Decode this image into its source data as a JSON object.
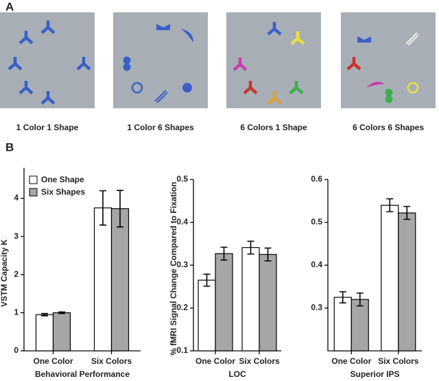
{
  "panel_a": {
    "label": "A",
    "captions": [
      "1 Color 1 Shape",
      "1 Color 6 Shapes",
      "6 Colors 1 Shape",
      "6 Colors 6 Shapes"
    ]
  },
  "panel_b": {
    "label": "B"
  },
  "chart_data": [
    {
      "type": "bar",
      "y_label": "VSTM Capacity K",
      "x_label": "Behavioral Performance",
      "legend": "upper left",
      "categories": [
        "One Color",
        "Six Colors"
      ],
      "series": [
        {
          "name": "One Shape",
          "color": "#ffffff",
          "values": [
            0.95,
            3.75
          ],
          "errors": [
            0.03,
            0.45
          ]
        },
        {
          "name": "Six Shapes",
          "color": "#a6a6a6",
          "values": [
            1.0,
            3.73
          ],
          "errors": [
            0.02,
            0.48
          ]
        }
      ],
      "ylim": [
        0,
        4.8
      ],
      "yticks": [
        0,
        1,
        2,
        3,
        4
      ]
    },
    {
      "type": "bar",
      "y_label": "% fMRI Signal Change Compared to Fixation",
      "x_label": "LOC",
      "categories": [
        "One Color",
        "Six Colors"
      ],
      "series": [
        {
          "name": "One Shape",
          "color": "#ffffff",
          "values": [
            0.265,
            0.341
          ],
          "errors": [
            0.014,
            0.015
          ]
        },
        {
          "name": "Six Shapes",
          "color": "#a6a6a6",
          "values": [
            0.327,
            0.325
          ],
          "errors": [
            0.015,
            0.015
          ]
        }
      ],
      "ylim": [
        0.1,
        0.5
      ],
      "yticks": [
        0.1,
        0.2,
        0.3,
        0.4,
        0.5
      ]
    },
    {
      "type": "bar",
      "x_label": "Superior IPS",
      "categories": [
        "One Color",
        "Six Colors"
      ],
      "series": [
        {
          "name": "One Shape",
          "color": "#ffffff",
          "values": [
            0.325,
            0.54
          ],
          "errors": [
            0.013,
            0.015
          ]
        },
        {
          "name": "Six Shapes",
          "color": "#a6a6a6",
          "values": [
            0.32,
            0.522
          ],
          "errors": [
            0.015,
            0.015
          ]
        }
      ],
      "ylim": [
        0.2,
        0.6
      ],
      "yticks": [
        0.3,
        0.4,
        0.5,
        0.6
      ]
    }
  ]
}
